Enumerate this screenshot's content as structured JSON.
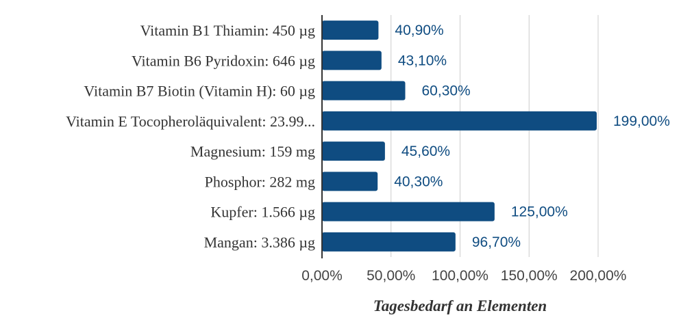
{
  "chart_data": {
    "type": "bar",
    "orientation": "horizontal",
    "categories": [
      "Vitamin B1 Thiamin: 450 µg",
      "Vitamin B6 Pyridoxin: 646 µg",
      "Vitamin B7 Biotin (Vitamin H): 60 µg",
      "Vitamin E Tocopheroläquivalent: 23.99...",
      "Magnesium: 159 mg",
      "Phosphor: 282 mg",
      "Kupfer: 1.566 µg",
      "Mangan: 3.386 µg"
    ],
    "values": [
      40.9,
      43.1,
      60.3,
      199.0,
      45.6,
      40.3,
      125.0,
      96.7
    ],
    "data_labels": [
      "40,90%",
      "43,10%",
      "60,30%",
      "199,00%",
      "45,60%",
      "40,30%",
      "125,00%",
      "96,70%"
    ],
    "xlabel": "Tagesbedarf an Elementen",
    "ylabel": "",
    "xlim": [
      0,
      200
    ],
    "x_ticks": [
      0,
      50,
      100,
      150,
      200
    ],
    "x_tick_labels": [
      "0,00%",
      "50,00%",
      "100,00%",
      "150,00%",
      "200,00%"
    ],
    "grid": "vertical",
    "legend": "none",
    "colors": {
      "bar": "#0f4c81",
      "data_label": "#0f4c81",
      "grid": "#cccccc",
      "axis": "#333333"
    }
  }
}
